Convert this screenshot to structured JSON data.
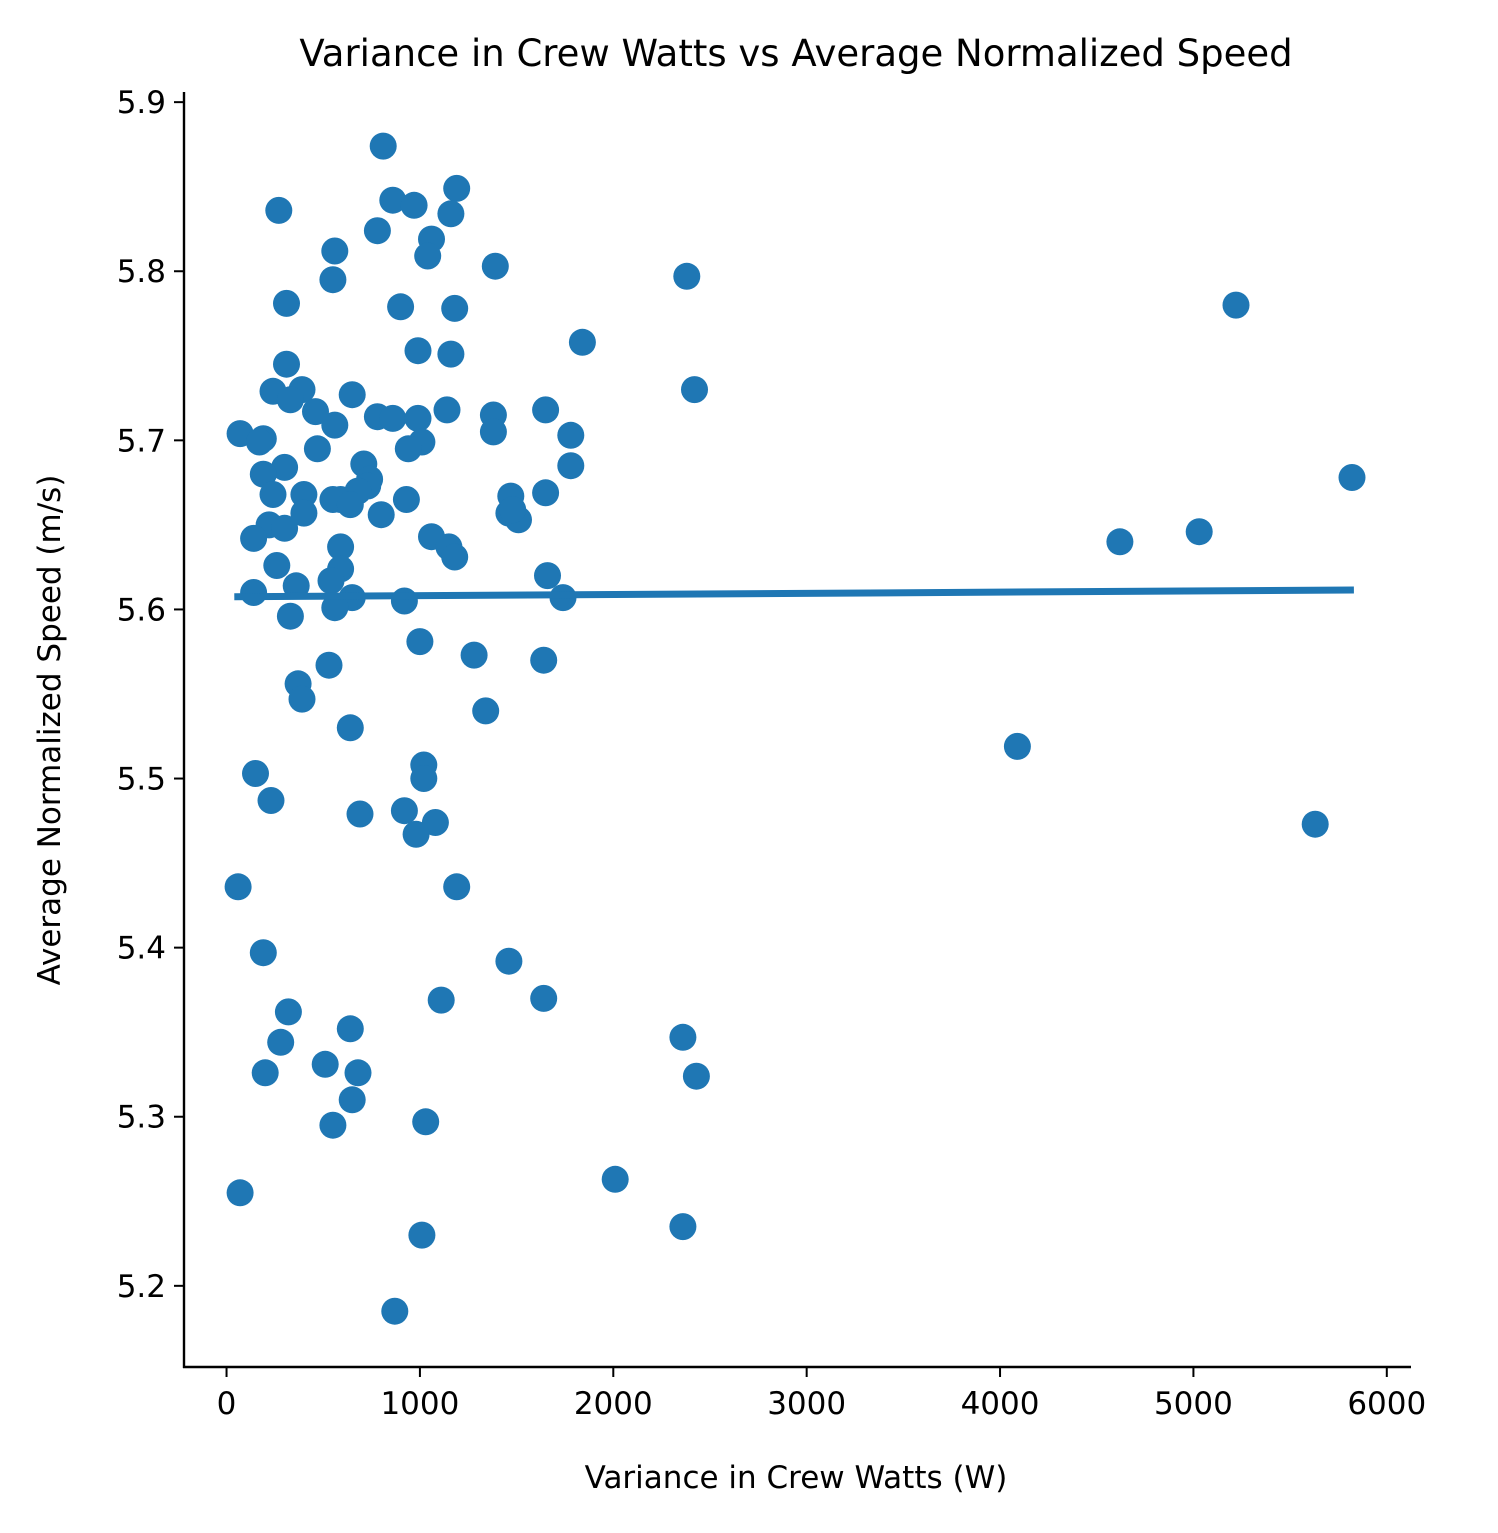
{
  "chart_data": {
    "type": "scatter",
    "title": "Variance in Crew Watts vs Average Normalized Speed",
    "xlabel": "Variance in Crew Watts (W)",
    "ylabel": "Average Normalized Speed (m/s)",
    "xlim": [
      -220,
      6120
    ],
    "ylim": [
      5.152,
      5.906
    ],
    "xticks": [
      0,
      1000,
      2000,
      3000,
      4000,
      5000,
      6000
    ],
    "yticks": [
      5.2,
      5.3,
      5.4,
      5.5,
      5.6,
      5.7,
      5.8,
      5.9
    ],
    "grid": false,
    "legend": "none",
    "color": "#1f77b4",
    "series": [
      {
        "x": [
          810,
          860,
          970,
          1190,
          1160,
          270,
          1060,
          1040,
          560,
          780,
          550,
          1390,
          2380,
          310,
          900,
          1180,
          5220,
          1840,
          990,
          1160,
          310,
          2420,
          390,
          240,
          650,
          330,
          460,
          1140,
          780,
          860,
          990,
          1380,
          1650,
          560,
          70,
          1380,
          190,
          170,
          1780,
          1010,
          940,
          470,
          710,
          300,
          1780,
          740,
          190,
          5820,
          730,
          680,
          1650,
          1470,
          240,
          400,
          590,
          550,
          930,
          1460,
          640,
          400,
          800,
          1510,
          1480,
          220,
          300,
          140,
          1060,
          4620,
          5030,
          1150,
          590,
          1180,
          260,
          590,
          1660,
          540,
          360,
          140,
          650,
          1740,
          920,
          560,
          330,
          1000,
          1280,
          1640,
          370,
          390,
          1340,
          640,
          530,
          1020,
          4090,
          150,
          1020,
          230,
          920,
          690,
          1080,
          980,
          5630,
          60,
          1190,
          190,
          1460,
          1640,
          1110,
          320,
          2360,
          640,
          280,
          2430,
          680,
          200,
          510,
          650,
          550,
          1030,
          2010,
          70,
          2360,
          1010,
          870
        ],
        "y": [
          5.874,
          5.842,
          5.839,
          5.849,
          5.834,
          5.836,
          5.819,
          5.809,
          5.812,
          5.824,
          5.795,
          5.803,
          5.797,
          5.781,
          5.779,
          5.778,
          5.78,
          5.758,
          5.753,
          5.751,
          5.745,
          5.73,
          5.73,
          5.729,
          5.727,
          5.724,
          5.717,
          5.718,
          5.714,
          5.713,
          5.713,
          5.715,
          5.718,
          5.709,
          5.704,
          5.705,
          5.701,
          5.699,
          5.703,
          5.699,
          5.695,
          5.695,
          5.686,
          5.684,
          5.685,
          5.677,
          5.68,
          5.678,
          5.673,
          5.67,
          5.669,
          5.667,
          5.668,
          5.668,
          5.665,
          5.665,
          5.665,
          5.657,
          5.662,
          5.657,
          5.656,
          5.653,
          5.659,
          5.65,
          5.648,
          5.642,
          5.643,
          5.64,
          5.646,
          5.637,
          5.637,
          5.631,
          5.626,
          5.624,
          5.62,
          5.617,
          5.614,
          5.61,
          5.607,
          5.607,
          5.605,
          5.601,
          5.596,
          5.581,
          5.573,
          5.57,
          5.556,
          5.547,
          5.54,
          5.53,
          5.567,
          5.508,
          5.519,
          5.503,
          5.5,
          5.487,
          5.481,
          5.479,
          5.474,
          5.467,
          5.473,
          5.436,
          5.436,
          5.397,
          5.392,
          5.37,
          5.369,
          5.362,
          5.347,
          5.352,
          5.344,
          5.324,
          5.326,
          5.326,
          5.331,
          5.31,
          5.295,
          5.297,
          5.263,
          5.255,
          5.235,
          5.23,
          5.185
        ]
      }
    ],
    "trendline": {
      "x": [
        40,
        5830
      ],
      "y": [
        5.6075,
        5.6115
      ]
    }
  }
}
